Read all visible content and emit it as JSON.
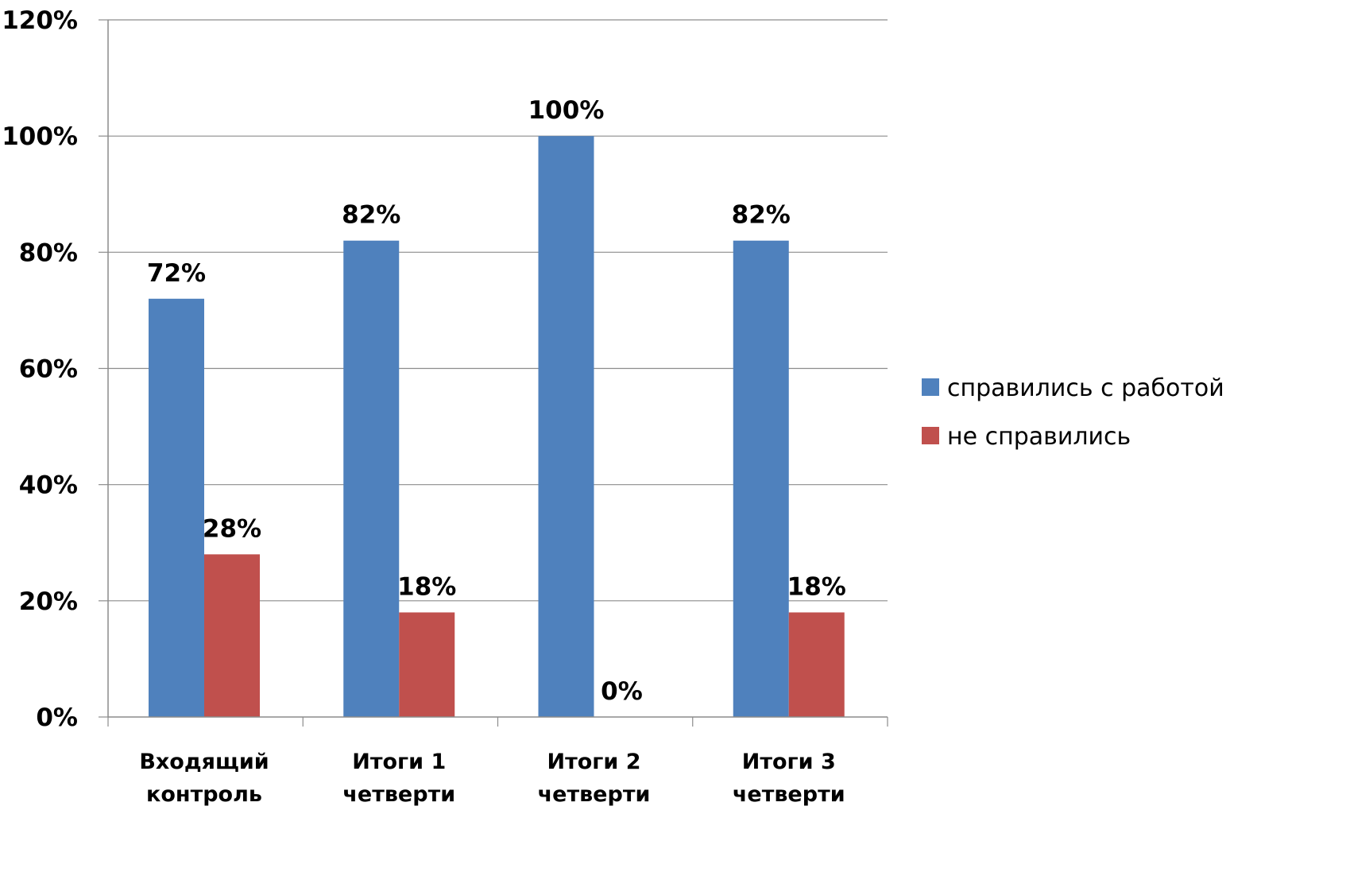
{
  "chart_data": {
    "type": "bar",
    "title": "",
    "xlabel": "",
    "ylabel": "",
    "categories": [
      [
        "Входящий",
        "контроль"
      ],
      [
        "Итоги 1",
        "четверти"
      ],
      [
        "Итоги 2",
        "четверти"
      ],
      [
        "Итоги  3",
        "четверти"
      ]
    ],
    "series": [
      {
        "name": "справились  с работой",
        "color": "#4f81bd",
        "values": [
          72,
          82,
          100,
          82
        ],
        "labels": [
          "72%",
          "82%",
          "100%",
          "82%"
        ]
      },
      {
        "name": "не  справились",
        "color": "#c0504d",
        "values": [
          28,
          18,
          0,
          18
        ],
        "labels": [
          "28%",
          "18%",
          "0%",
          "18%"
        ]
      }
    ],
    "ylim": [
      0,
      120
    ],
    "yticks": [
      0,
      20,
      40,
      60,
      80,
      100,
      120
    ],
    "ytick_labels": [
      "0%",
      "20%",
      "40%",
      "60%",
      "80%",
      "100%",
      "120%"
    ],
    "grid": true,
    "legend_position": "right"
  }
}
